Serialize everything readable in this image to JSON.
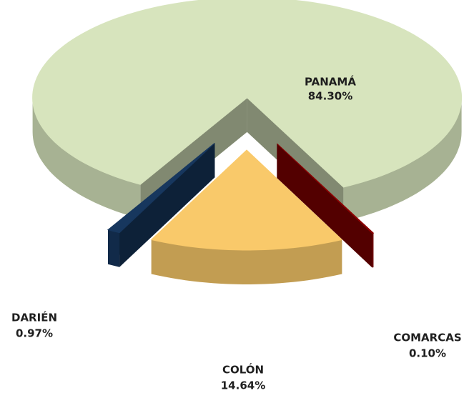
{
  "chart_data": {
    "type": "pie3d",
    "categories": [
      "PANAMÁ",
      "COLÓN",
      "DARIÉN",
      "COMARCAS"
    ],
    "values": [
      84.3,
      14.64,
      0.97,
      0.1
    ],
    "value_labels": [
      "84.30%",
      "14.64%",
      "0.97%",
      "0.10%"
    ],
    "colors": [
      "#d7e4bd",
      "#f9c96a",
      "#17375e",
      "#8b0000"
    ]
  }
}
